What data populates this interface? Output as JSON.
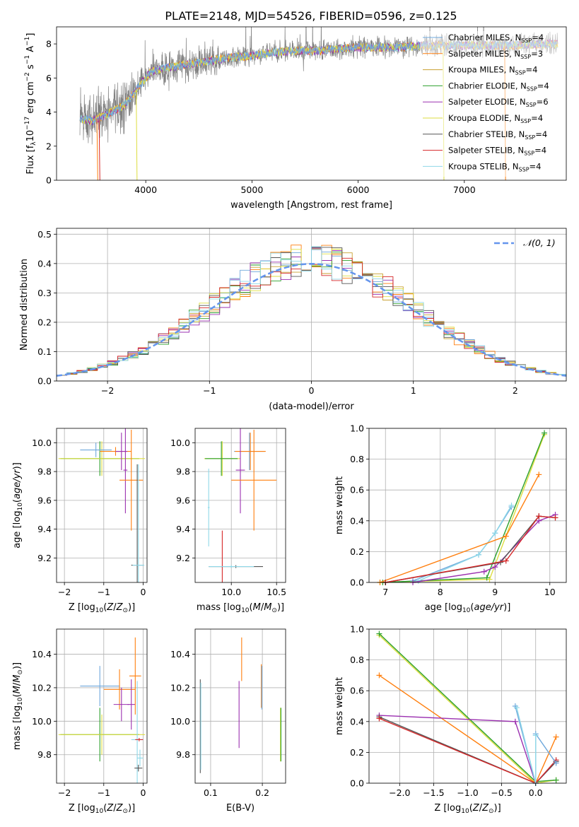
{
  "figure_title": "PLATE=2148, MJD=54526, FIBERID=0596, z=0.125",
  "colors": {
    "spectrum": "#808080",
    "gauss": "#6495ed",
    "grid": "#b0b0b0",
    "chabrier_miles": "#6fa8dc",
    "salpeter_miles": "#ff7f0e",
    "kroupa_miles": "#c8a030",
    "chabrier_elodie": "#2ca02c",
    "salpeter_elodie": "#9b30b0",
    "kroupa_elodie": "#dddd40",
    "chabrier_stelib": "#555555",
    "salpeter_stelib": "#d62728",
    "kroupa_stelib": "#8fd8e8"
  },
  "chart_data": [
    {
      "id": "spectrum",
      "type": "line",
      "title": "PLATE=2148, MJD=54526, FIBERID=0596, z=0.125",
      "xlabel": "wavelength [Angstrom, rest frame]",
      "ylabel": "Flux [f_λ 10^-17 erg cm^-2 s^-1 A^-1]",
      "xlim": [
        3160,
        7960
      ],
      "ylim": [
        0,
        9
      ],
      "xticks": [
        4000,
        5000,
        6000,
        7000
      ],
      "yticks": [
        0,
        2,
        4,
        6,
        8
      ],
      "grid": false,
      "legend_position": "right",
      "continuum": [
        [
          3380,
          3.6
        ],
        [
          3500,
          3.5
        ],
        [
          3650,
          3.9
        ],
        [
          3800,
          4.4
        ],
        [
          3950,
          5.6
        ],
        [
          4050,
          6.4
        ],
        [
          4200,
          6.6
        ],
        [
          4400,
          6.8
        ],
        [
          4600,
          7.0
        ],
        [
          4800,
          7.2
        ],
        [
          5000,
          7.3
        ],
        [
          5200,
          7.5
        ],
        [
          5400,
          7.6
        ],
        [
          5600,
          7.6
        ],
        [
          5800,
          7.7
        ],
        [
          6000,
          7.8
        ],
        [
          6200,
          7.8
        ],
        [
          6400,
          7.8
        ],
        [
          6600,
          7.9
        ],
        [
          6800,
          7.9
        ],
        [
          7000,
          7.9
        ],
        [
          7200,
          7.9
        ],
        [
          7400,
          7.9
        ],
        [
          7600,
          7.95
        ],
        [
          7800,
          8.0
        ]
      ],
      "legend": [
        {
          "label": "Chabrier MILES, N",
          "sub": "SSP",
          "tail": "=4",
          "color_key": "chabrier_miles"
        },
        {
          "label": "Salpeter MILES, N",
          "sub": "SSP",
          "tail": "=3",
          "color_key": "salpeter_miles"
        },
        {
          "label": "Kroupa MILES, N",
          "sub": "SSP",
          "tail": "=4",
          "color_key": "kroupa_miles"
        },
        {
          "label": "Chabrier ELODIE, N",
          "sub": "SSP",
          "tail": "=4",
          "color_key": "chabrier_elodie"
        },
        {
          "label": "Salpeter ELODIE, N",
          "sub": "SSP",
          "tail": "=6",
          "color_key": "salpeter_elodie"
        },
        {
          "label": "Kroupa ELODIE, N",
          "sub": "SSP",
          "tail": "=4",
          "color_key": "kroupa_elodie"
        },
        {
          "label": "Chabrier STELIB, N",
          "sub": "SSP",
          "tail": "=4",
          "color_key": "chabrier_stelib"
        },
        {
          "label": "Salpeter STELIB, N",
          "sub": "SSP",
          "tail": "=4",
          "color_key": "salpeter_stelib"
        },
        {
          "label": "Kroupa STELIB, N",
          "sub": "SSP",
          "tail": "=4",
          "color_key": "kroupa_stelib"
        }
      ]
    },
    {
      "id": "residuals",
      "type": "line",
      "xlabel": "(data-model)/error",
      "ylabel": "Normed distribution",
      "xlim": [
        -2.5,
        2.5
      ],
      "ylim": [
        0,
        0.52
      ],
      "xticks": [
        -2,
        -1,
        0,
        1,
        2
      ],
      "yticks": [
        0.0,
        0.1,
        0.2,
        0.3,
        0.4,
        0.5
      ],
      "grid": true,
      "legend_position": "top-right",
      "legend_label": "𝒩(0, 1)",
      "bin_width": 0.1
    },
    {
      "id": "age_vs_Z",
      "type": "scatter",
      "xlabel": "Z [log10(Z/Z⊙)]",
      "ylabel": "age [log10(age/yr)]",
      "xlim": [
        -2.2,
        0.1
      ],
      "ylim": [
        9.03,
        10.1
      ],
      "xticks": [
        -2,
        -1,
        0
      ],
      "yticks": [
        9.2,
        9.4,
        9.6,
        9.8,
        10.0
      ],
      "grid": true,
      "points": [
        {
          "x": -1.1,
          "y": 9.89,
          "xerr": 1.0,
          "yerr": 0.12,
          "c": "chabrier_elodie"
        },
        {
          "x": -1.05,
          "y": 9.89,
          "xerr": 1.1,
          "yerr": 0.12,
          "c": "kroupa_elodie"
        },
        {
          "x": -1.2,
          "y": 9.95,
          "xerr": 0.4,
          "yerr": 0.05,
          "c": "chabrier_miles"
        },
        {
          "x": -0.7,
          "y": 9.94,
          "xerr": 0.4,
          "yerr": 0.03,
          "c": "salpeter_miles"
        },
        {
          "x": -0.55,
          "y": 9.94,
          "xerr": 0.15,
          "yerr": 0.13,
          "c": "salpeter_elodie"
        },
        {
          "x": -0.45,
          "y": 9.81,
          "xerr": 0.05,
          "yerr": 0.3,
          "c": "salpeter_elodie"
        },
        {
          "x": -0.3,
          "y": 9.74,
          "xerr": 0.3,
          "yerr": 0.35,
          "c": "salpeter_miles"
        },
        {
          "x": -0.15,
          "y": 9.15,
          "xerr": 0.15,
          "yerr": 0.7,
          "c": "chabrier_stelib"
        },
        {
          "x": -0.12,
          "y": 9.15,
          "xerr": 0.15,
          "yerr": 0.7,
          "c": "kroupa_stelib"
        }
      ]
    },
    {
      "id": "age_vs_mass",
      "type": "scatter",
      "xlabel": "mass [log10(M/M⊙)]",
      "ylabel": "",
      "xlim": [
        9.6,
        10.6
      ],
      "ylim": [
        9.03,
        10.1
      ],
      "xticks": [
        10.0,
        10.5
      ],
      "yticks": [
        9.2,
        9.4,
        9.6,
        9.8,
        10.0
      ],
      "grid": true,
      "points": [
        {
          "x": 9.9,
          "y": 9.89,
          "xerr": 0.2,
          "yerr": 0.12,
          "c": "kroupa_elodie"
        },
        {
          "x": 9.89,
          "y": 9.89,
          "xerr": 0.18,
          "yerr": 0.12,
          "c": "chabrier_elodie"
        },
        {
          "x": 10.2,
          "y": 9.94,
          "xerr": 0.17,
          "yerr": 0.13,
          "c": "chabrier_miles"
        },
        {
          "x": 10.21,
          "y": 9.94,
          "xerr": 0.17,
          "yerr": 0.13,
          "c": "salpeter_miles"
        },
        {
          "x": 10.1,
          "y": 9.81,
          "xerr": 0.05,
          "yerr": 0.3,
          "c": "salpeter_elodie"
        },
        {
          "x": 10.25,
          "y": 9.74,
          "xerr": 0.25,
          "yerr": 0.35,
          "c": "salpeter_miles"
        },
        {
          "x": 9.75,
          "y": 9.55,
          "xerr": 0.01,
          "yerr": 0.27,
          "c": "kroupa_stelib"
        },
        {
          "x": 9.9,
          "y": 9.14,
          "xerr": 0.01,
          "yerr": 0.25,
          "c": "salpeter_stelib"
        },
        {
          "x": 10.05,
          "y": 9.14,
          "xerr": 0.3,
          "yerr": 0.01,
          "c": "chabrier_stelib"
        },
        {
          "x": 10.0,
          "y": 9.14,
          "xerr": 0.25,
          "yerr": 0.01,
          "c": "kroupa_stelib"
        }
      ]
    },
    {
      "id": "mass_weight_vs_age",
      "type": "line",
      "xlabel": "age  [log10(age/yr)]",
      "ylabel": "mass weight",
      "xlim": [
        6.7,
        10.3
      ],
      "ylim": [
        0,
        1.0
      ],
      "xticks": [
        7,
        8,
        9,
        10
      ],
      "yticks": [
        0.0,
        0.2,
        0.4,
        0.6,
        0.8,
        1.0
      ],
      "grid": true,
      "series": [
        {
          "c": "kroupa_elodie",
          "x": [
            6.9,
            8.9,
            9.9
          ],
          "y": [
            0.0,
            0.02,
            0.96
          ]
        },
        {
          "c": "chabrier_elodie",
          "x": [
            6.95,
            8.85,
            9.9
          ],
          "y": [
            0.0,
            0.03,
            0.97
          ]
        },
        {
          "c": "chabrier_miles",
          "x": [
            7.5,
            8.7,
            9.0,
            9.3
          ],
          "y": [
            0.01,
            0.18,
            0.32,
            0.49
          ]
        },
        {
          "c": "kroupa_stelib",
          "x": [
            7.6,
            8.7,
            9.0,
            9.3
          ],
          "y": [
            0.01,
            0.18,
            0.32,
            0.5
          ]
        },
        {
          "c": "salpeter_miles",
          "x": [
            6.9,
            9.2,
            9.8
          ],
          "y": [
            0.0,
            0.3,
            0.7
          ]
        },
        {
          "c": "salpeter_elodie",
          "x": [
            7.5,
            8.8,
            9.0,
            9.8,
            10.1
          ],
          "y": [
            0.0,
            0.07,
            0.1,
            0.4,
            0.44
          ]
        },
        {
          "c": "chabrier_stelib",
          "x": [
            7.0,
            9.1,
            9.8,
            10.1
          ],
          "y": [
            0.0,
            0.13,
            0.43,
            0.42
          ]
        },
        {
          "c": "salpeter_stelib",
          "x": [
            7.0,
            9.2,
            9.8,
            10.1
          ],
          "y": [
            0.0,
            0.14,
            0.43,
            0.42
          ]
        }
      ]
    },
    {
      "id": "mass_vs_Z",
      "type": "scatter",
      "xlabel": "Z [log10(Z/Z⊙)]",
      "ylabel": "mass [log10(M/M⊙)]",
      "xlim": [
        -2.2,
        0.1
      ],
      "ylim": [
        9.63,
        10.55
      ],
      "xticks": [
        -2,
        -1,
        0
      ],
      "yticks": [
        9.8,
        10.0,
        10.2,
        10.4
      ],
      "grid": true,
      "points": [
        {
          "x": -1.1,
          "y": 9.92,
          "xerr": 1.0,
          "yerr": 0.16,
          "c": "chabrier_elodie"
        },
        {
          "x": -1.05,
          "y": 9.92,
          "xerr": 1.1,
          "yerr": 0.12,
          "c": "kroupa_elodie"
        },
        {
          "x": -1.1,
          "y": 10.21,
          "xerr": 0.5,
          "yerr": 0.12,
          "c": "chabrier_miles"
        },
        {
          "x": -0.6,
          "y": 10.19,
          "xerr": 0.4,
          "yerr": 0.12,
          "c": "salpeter_miles"
        },
        {
          "x": -0.55,
          "y": 10.1,
          "xerr": 0.2,
          "yerr": 0.1,
          "c": "salpeter_elodie"
        },
        {
          "x": -0.3,
          "y": 10.1,
          "xerr": 0.1,
          "yerr": 0.15,
          "c": "salpeter_elodie"
        },
        {
          "x": -0.2,
          "y": 10.27,
          "xerr": 0.15,
          "yerr": 0.23,
          "c": "salpeter_miles"
        },
        {
          "x": -0.15,
          "y": 9.89,
          "xerr": 0.15,
          "yerr": 0.35,
          "c": "kroupa_stelib"
        },
        {
          "x": -0.1,
          "y": 9.89,
          "xerr": 0.1,
          "yerr": 0.01,
          "c": "salpeter_stelib"
        },
        {
          "x": -0.12,
          "y": 9.72,
          "xerr": 0.1,
          "yerr": 0.02,
          "c": "chabrier_stelib"
        },
        {
          "x": -0.08,
          "y": 9.78,
          "xerr": 0.08,
          "yerr": 0.05,
          "c": "kroupa_stelib"
        }
      ]
    },
    {
      "id": "mass_vs_ebv",
      "type": "scatter",
      "xlabel": "E(B-V)",
      "ylabel": "",
      "xlim": [
        0.07,
        0.245
      ],
      "ylim": [
        9.63,
        10.55
      ],
      "xticks": [
        0.1,
        0.2
      ],
      "yticks": [
        9.8,
        10.0,
        10.2,
        10.4
      ],
      "grid": true,
      "points": [
        {
          "x": 0.08,
          "y": 9.97,
          "xerr": 0,
          "yerr": 0.28,
          "c": "chabrier_stelib"
        },
        {
          "x": 0.081,
          "y": 9.97,
          "xerr": 0,
          "yerr": 0.26,
          "c": "kroupa_stelib"
        },
        {
          "x": 0.155,
          "y": 10.04,
          "xerr": 0,
          "yerr": 0.2,
          "c": "salpeter_elodie"
        },
        {
          "x": 0.16,
          "y": 10.37,
          "xerr": 0,
          "yerr": 0.13,
          "c": "salpeter_miles"
        },
        {
          "x": 0.198,
          "y": 10.21,
          "xerr": 0,
          "yerr": 0.13,
          "c": "salpeter_miles"
        },
        {
          "x": 0.199,
          "y": 10.2,
          "xerr": 0,
          "yerr": 0.13,
          "c": "chabrier_miles"
        },
        {
          "x": 0.235,
          "y": 9.92,
          "xerr": 0,
          "yerr": 0.16,
          "c": "kroupa_elodie"
        },
        {
          "x": 0.236,
          "y": 9.92,
          "xerr": 0,
          "yerr": 0.16,
          "c": "chabrier_elodie"
        }
      ]
    },
    {
      "id": "mass_weight_vs_Z",
      "type": "line",
      "xlabel": "Z [log10(Z/Z⊙)]",
      "ylabel": "mass weight",
      "xlim": [
        -2.45,
        0.45
      ],
      "ylim": [
        0,
        1.0
      ],
      "xticks": [
        -2.0,
        -1.5,
        -1.0,
        -0.5,
        0.0
      ],
      "yticks": [
        0.0,
        0.2,
        0.4,
        0.6,
        0.8,
        1.0
      ],
      "grid": true,
      "series": [
        {
          "c": "kroupa_elodie",
          "x": [
            -2.3,
            0.0,
            0.3
          ],
          "y": [
            0.96,
            0.0,
            0.02
          ]
        },
        {
          "c": "chabrier_elodie",
          "x": [
            -2.3,
            0.0,
            0.3
          ],
          "y": [
            0.97,
            0.01,
            0.02
          ]
        },
        {
          "c": "salpeter_miles",
          "x": [
            -2.3,
            0.0,
            0.3
          ],
          "y": [
            0.7,
            0.0,
            0.3
          ]
        },
        {
          "c": "salpeter_elodie",
          "x": [
            -2.3,
            -0.3,
            0.0,
            0.3
          ],
          "y": [
            0.44,
            0.4,
            0.0,
            0.14
          ]
        },
        {
          "c": "chabrier_stelib",
          "x": [
            -2.3,
            0.0,
            0.3
          ],
          "y": [
            0.43,
            0.0,
            0.14
          ]
        },
        {
          "c": "salpeter_stelib",
          "x": [
            -2.3,
            0.0,
            0.3
          ],
          "y": [
            0.42,
            0.0,
            0.15
          ]
        },
        {
          "c": "chabrier_miles",
          "x": [
            -0.3,
            0.0,
            0.0,
            0.3
          ],
          "y": [
            0.5,
            0.0,
            0.32,
            0.13
          ]
        },
        {
          "c": "kroupa_stelib",
          "x": [
            -0.28,
            0.0,
            0.0
          ],
          "y": [
            0.49,
            0.0,
            0.31
          ]
        }
      ]
    }
  ]
}
